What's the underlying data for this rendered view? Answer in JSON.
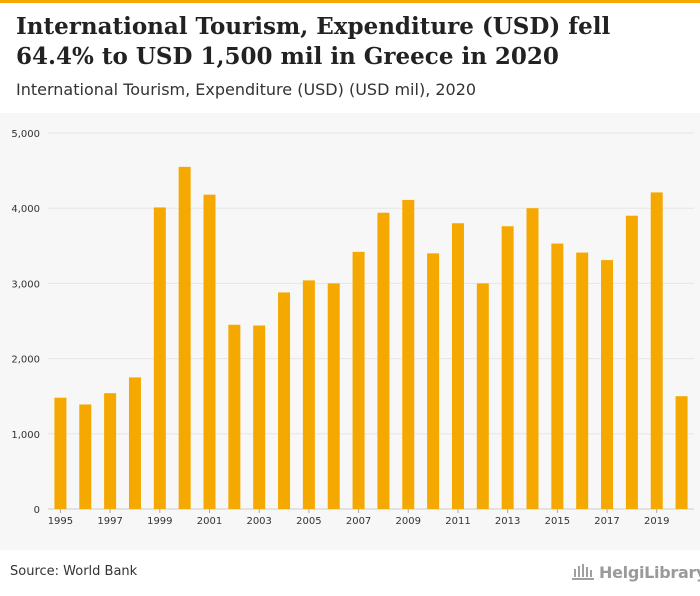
{
  "header": {
    "title": "International Tourism, Expenditure (USD) fell 64.4% to USD 1,500 mil in Greece in 2020",
    "subtitle": "International Tourism, Expenditure (USD) (USD mil), 2020"
  },
  "footer": {
    "source": "Source: World Bank",
    "logo_text": "HelgiLibrary"
  },
  "colors": {
    "accent": "#f5a800",
    "bar": "#f5a800",
    "grid": "#e6e6e6"
  },
  "chart_data": {
    "type": "bar",
    "title": "International Tourism, Expenditure (USD) (USD mil)",
    "xlabel": "",
    "ylabel": "",
    "ylim": [
      0,
      5000
    ],
    "yticks": [
      0,
      1000,
      2000,
      3000,
      4000,
      5000
    ],
    "ytick_labels": [
      "0",
      "1,000",
      "2,000",
      "3,000",
      "4,000",
      "5,000"
    ],
    "categories": [
      "1995",
      "1996",
      "1997",
      "1998",
      "1999",
      "2000",
      "2001",
      "2002",
      "2003",
      "2004",
      "2005",
      "2006",
      "2007",
      "2008",
      "2009",
      "2010",
      "2011",
      "2012",
      "2013",
      "2014",
      "2015",
      "2016",
      "2017",
      "2018",
      "2019",
      "2020"
    ],
    "xtick_labels": [
      "1995",
      "",
      "1997",
      "",
      "1999",
      "",
      "2001",
      "",
      "2003",
      "",
      "2005",
      "",
      "2007",
      "",
      "2009",
      "",
      "2011",
      "",
      "2013",
      "",
      "2015",
      "",
      "2017",
      "",
      "2019",
      ""
    ],
    "values": [
      1480,
      1390,
      1540,
      1750,
      4010,
      4550,
      4180,
      2450,
      2440,
      2880,
      3040,
      3000,
      3420,
      3940,
      4110,
      3400,
      3800,
      3000,
      3760,
      4000,
      3530,
      3410,
      3310,
      3900,
      4210,
      1500
    ],
    "grid": true
  }
}
